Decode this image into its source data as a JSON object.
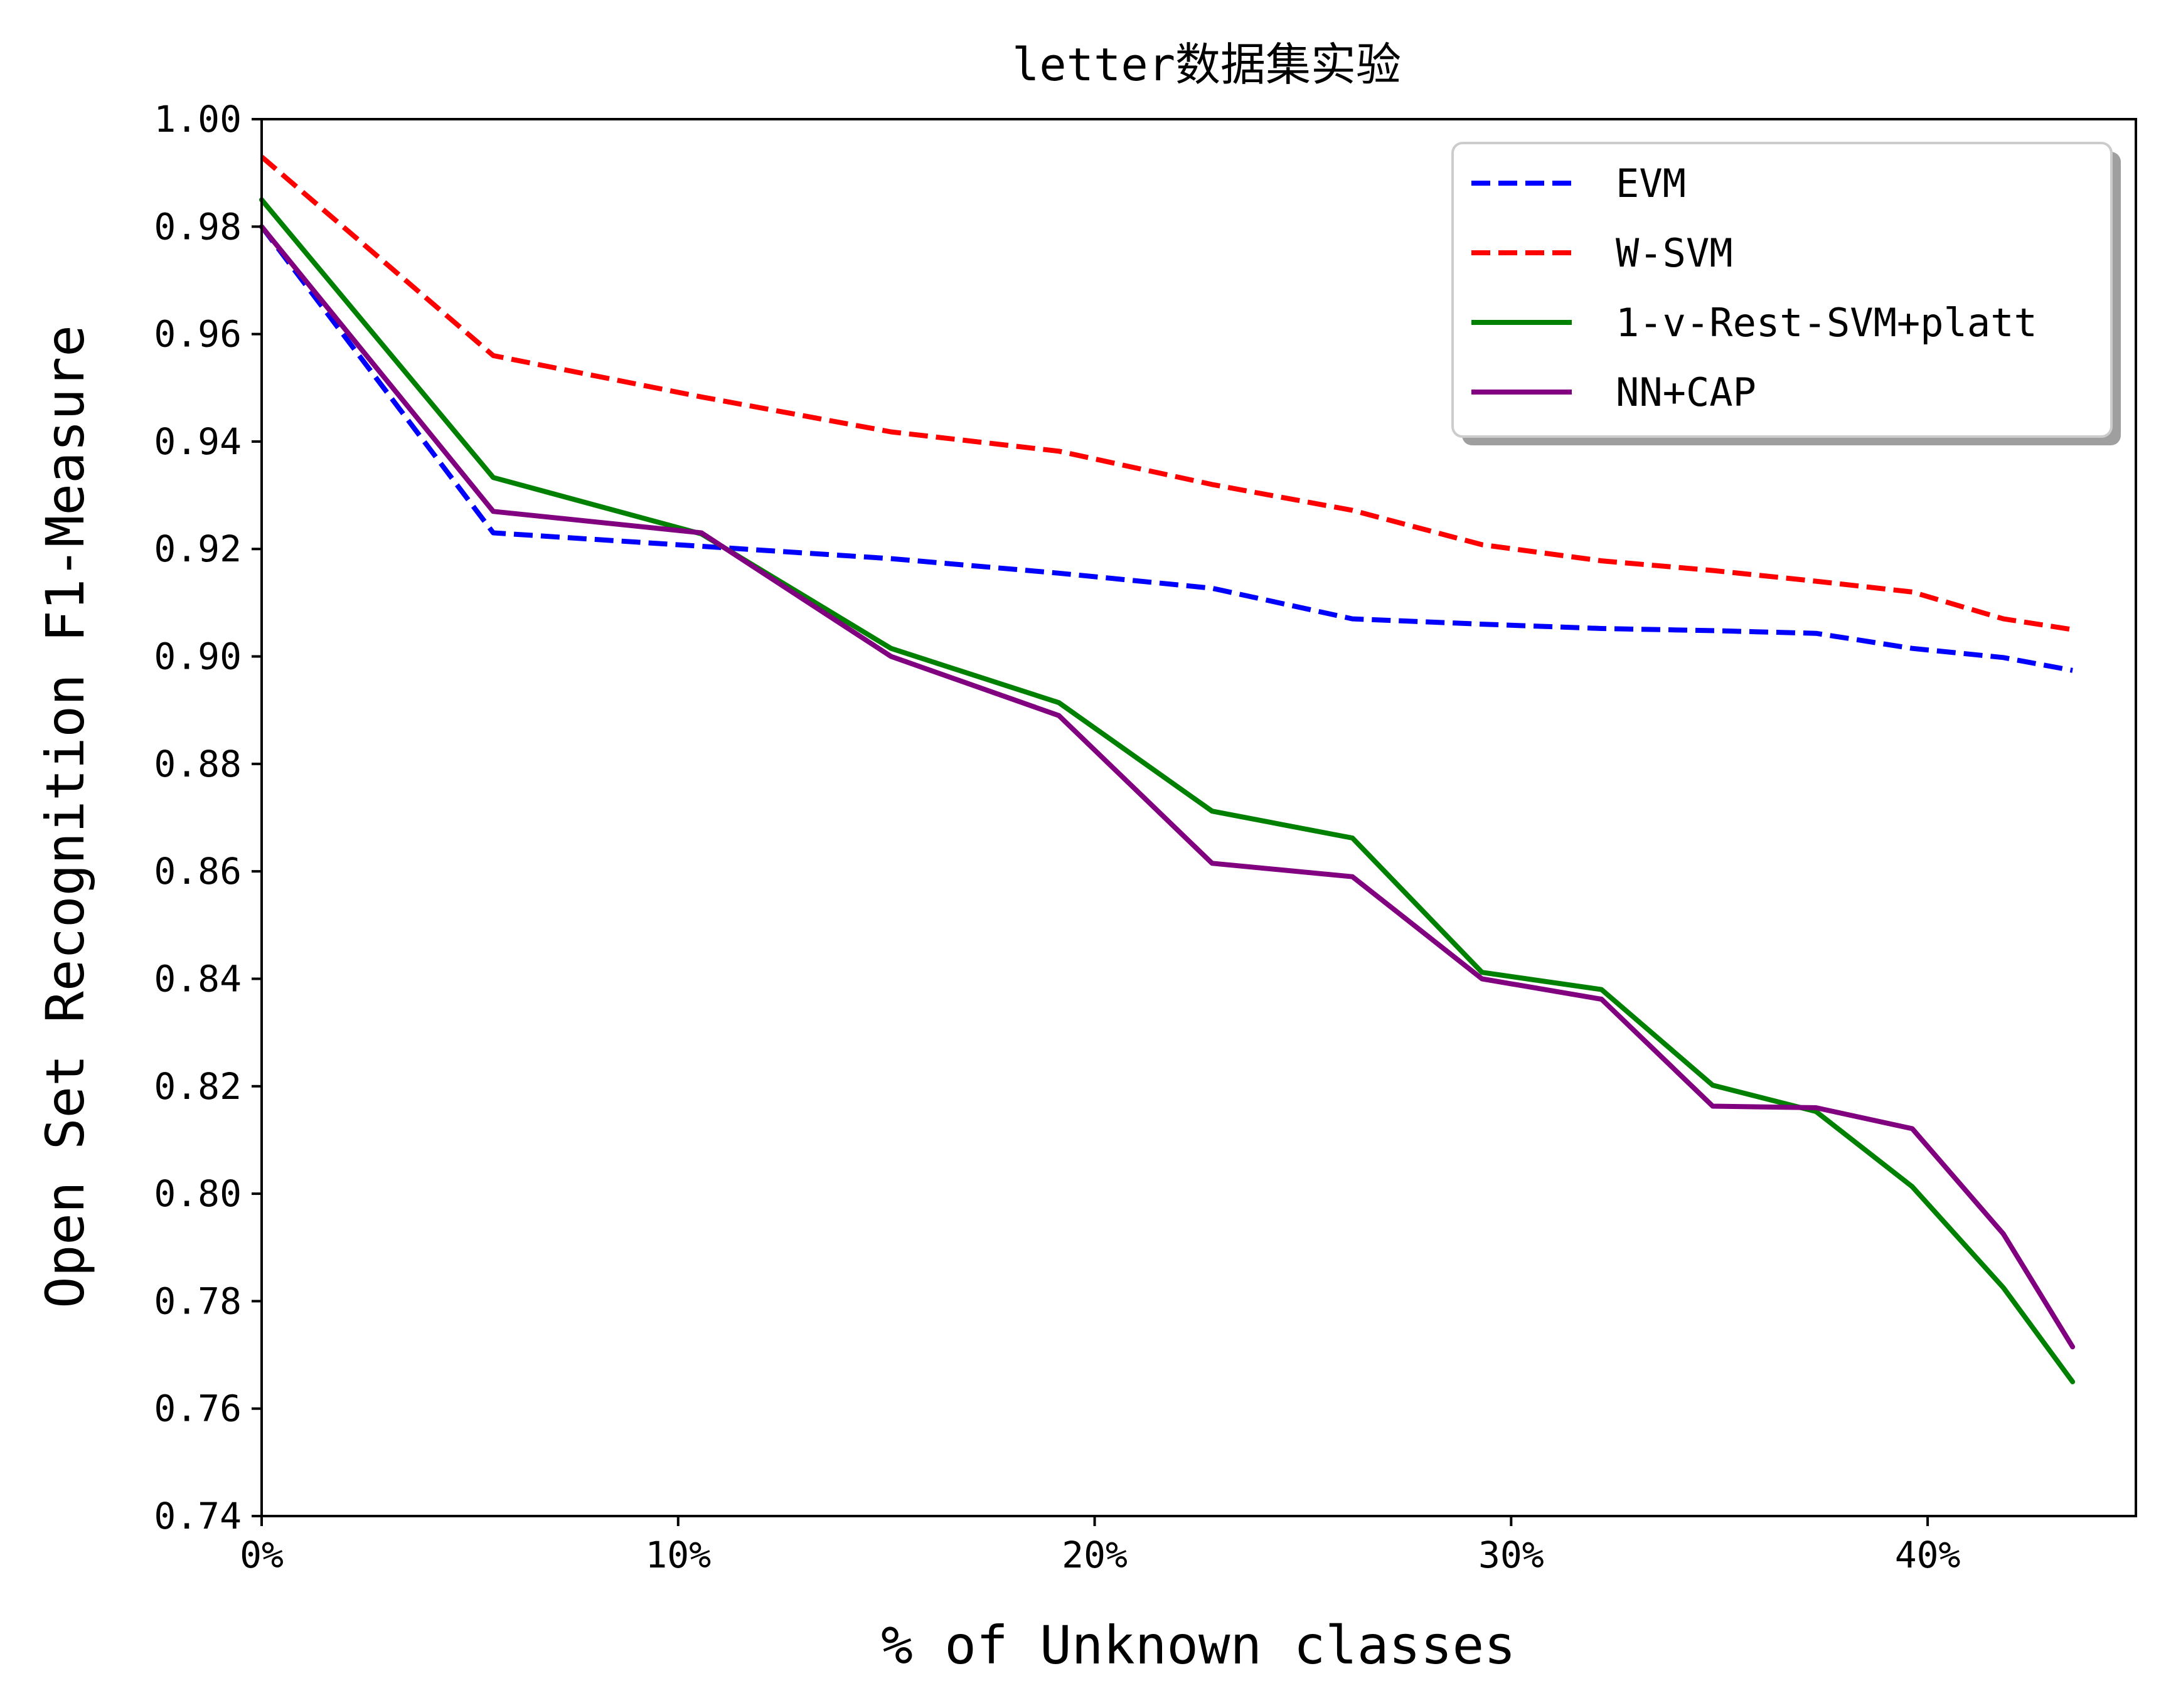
{
  "chart_data": {
    "type": "line",
    "title": "letter数据集实验",
    "xlabel": "% of Unknown classes",
    "ylabel": "Open Set Recognition F1-Measure",
    "xlim": [
      0,
      45
    ],
    "ylim": [
      0.74,
      1.0
    ],
    "x_ticks": [
      0,
      10,
      20,
      30,
      40
    ],
    "x_tick_labels": [
      "0%",
      "10%",
      "20%",
      "30%",
      "40%"
    ],
    "y_ticks": [
      0.74,
      0.76,
      0.78,
      0.8,
      0.82,
      0.84,
      0.86,
      0.88,
      0.9,
      0.92,
      0.94,
      0.96,
      0.98,
      1.0
    ],
    "y_tick_labels": [
      "0.74",
      "0.76",
      "0.78",
      "0.80",
      "0.82",
      "0.84",
      "0.86",
      "0.88",
      "0.90",
      "0.92",
      "0.94",
      "0.96",
      "0.98",
      "1.00"
    ],
    "grid": false,
    "legend_position": "top-right",
    "series": [
      {
        "name": "EVM",
        "color": "#0000ff",
        "dashed": true,
        "x": [
          0,
          5.56,
          10.56,
          15.11,
          19.14,
          22.82,
          26.19,
          29.3,
          32.17,
          34.84,
          37.32,
          39.63,
          41.82,
          43.48
        ],
        "y": [
          0.98,
          0.923,
          0.9205,
          0.9182,
          0.9155,
          0.9127,
          0.907,
          0.906,
          0.9052,
          0.9048,
          0.9043,
          0.9015,
          0.8998,
          0.8974
        ]
      },
      {
        "name": "W-SVM",
        "color": "#ff0000",
        "dashed": true,
        "x": [
          0,
          5.56,
          10.56,
          15.11,
          19.14,
          22.82,
          26.19,
          29.3,
          32.17,
          34.84,
          37.32,
          39.63,
          41.82,
          43.48
        ],
        "y": [
          0.993,
          0.956,
          0.9483,
          0.9418,
          0.9382,
          0.932,
          0.9272,
          0.9208,
          0.9178,
          0.916,
          0.914,
          0.912,
          0.907,
          0.905
        ]
      },
      {
        "name": "1-v-Rest-SVM+platt",
        "color": "#008000",
        "dashed": false,
        "x": [
          0,
          5.56,
          10.56,
          15.11,
          19.14,
          22.82,
          26.19,
          29.3,
          32.17,
          34.84,
          37.32,
          39.63,
          41.82,
          43.48
        ],
        "y": [
          0.985,
          0.9333,
          0.9228,
          0.9015,
          0.8914,
          0.8712,
          0.8662,
          0.8412,
          0.838,
          0.8202,
          0.8153,
          0.8013,
          0.7825,
          0.765
        ]
      },
      {
        "name": "NN+CAP",
        "color": "#800080",
        "dashed": false,
        "x": [
          0,
          5.56,
          10.56,
          15.11,
          19.14,
          22.82,
          26.19,
          29.3,
          32.17,
          34.84,
          37.32,
          39.63,
          41.82,
          43.48
        ],
        "y": [
          0.98,
          0.927,
          0.923,
          0.9,
          0.889,
          0.8615,
          0.859,
          0.84,
          0.8362,
          0.8163,
          0.816,
          0.8121,
          0.7925,
          0.7715
        ]
      }
    ]
  }
}
